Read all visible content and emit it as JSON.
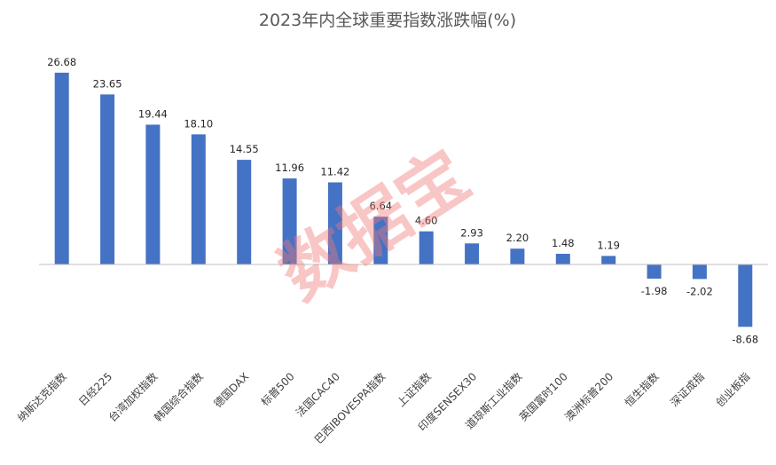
{
  "chart_data": {
    "type": "bar",
    "title": "2023年内全球重要指数涨跌幅(%)",
    "categories": [
      "纳斯达克指数",
      "日经225",
      "台湾加权指数",
      "韩国综合指数",
      "德国DAX",
      "标普500",
      "法国CAC40",
      "巴西IBOVESPA指数",
      "上证指数",
      "印度SENSEX30",
      "道琼斯工业指数",
      "英国富时100",
      "澳洲标普200",
      "恒生指数",
      "深证成指",
      "创业板指"
    ],
    "values": [
      26.68,
      23.65,
      19.44,
      18.1,
      14.55,
      11.96,
      11.42,
      6.64,
      4.6,
      2.93,
      2.2,
      1.48,
      1.19,
      -1.98,
      -2.02,
      -8.68
    ],
    "value_labels": [
      "26.68",
      "23.65",
      "19.44",
      "18.10",
      "14.55",
      "11.96",
      "11.42",
      "6.64",
      "4.60",
      "2.93",
      "2.20",
      "1.48",
      "1.19",
      "-1.98",
      "-2.02",
      "-8.68"
    ],
    "ylim": [
      -10,
      30
    ],
    "xlabel": "",
    "ylabel": "",
    "grid": false,
    "legend": "none",
    "bar_color": "#4472C4",
    "axis_color": "#BFBFBF"
  },
  "watermark": {
    "text": "数据宝",
    "color": "#F07878"
  }
}
